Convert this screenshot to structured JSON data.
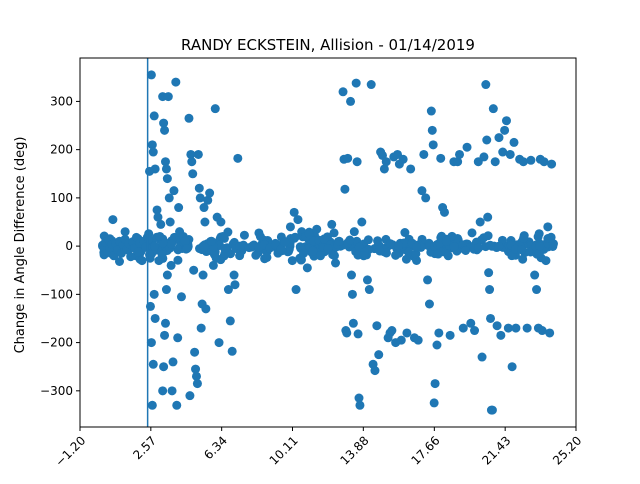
{
  "chart_data": {
    "type": "scatter",
    "title": "RANDY ECKSTEIN, Allision - 01/14/2019",
    "xlabel": "",
    "ylabel": "Change in Angle Difference (deg)",
    "xlim": [
      -1.2,
      25.2
    ],
    "ylim": [
      -375,
      390
    ],
    "x_tick_labels": [
      "−1.20",
      "2.57",
      "6.34",
      "10.11",
      "13.88",
      "17.66",
      "21.43",
      "25.20"
    ],
    "x_tick_values": [
      -1.2,
      2.57,
      6.34,
      10.11,
      13.88,
      17.66,
      21.43,
      25.2
    ],
    "y_tick_labels": [
      "−300",
      "−200",
      "−100",
      "0",
      "100",
      "200",
      "300"
    ],
    "y_tick_values": [
      -300,
      -200,
      -100,
      0,
      100,
      200,
      300
    ],
    "vertical_line_x": 2.4,
    "grid": false,
    "colors": {
      "points": "#1f77b4",
      "vline": "#1f77b4",
      "axes": "#000000"
    },
    "series": [
      {
        "values_note": "",
        "points": [
          [
            0.0,
            2
          ],
          [
            0.1,
            -5
          ],
          [
            0.15,
            8
          ],
          [
            0.25,
            -10
          ],
          [
            0.35,
            12
          ],
          [
            0.4,
            -3
          ],
          [
            0.5,
            4
          ],
          [
            0.55,
            55
          ],
          [
            0.6,
            -20
          ],
          [
            0.7,
            6
          ],
          [
            0.8,
            -8
          ],
          [
            0.9,
            10
          ],
          [
            1.0,
            -15
          ],
          [
            1.1,
            3
          ],
          [
            1.2,
            14
          ],
          [
            1.3,
            -6
          ],
          [
            1.4,
            5
          ],
          [
            1.5,
            -22
          ],
          [
            1.6,
            9
          ],
          [
            1.7,
            -4
          ],
          [
            1.8,
            18
          ],
          [
            1.9,
            -12
          ],
          [
            2.0,
            6
          ],
          [
            2.1,
            -30
          ],
          [
            2.2,
            10
          ],
          [
            2.3,
            -2
          ],
          [
            2.45,
            15
          ],
          [
            2.5,
            -18
          ],
          [
            2.6,
            355
          ],
          [
            2.65,
            210
          ],
          [
            2.7,
            195
          ],
          [
            2.75,
            270
          ],
          [
            2.8,
            160
          ],
          [
            2.5,
            155
          ],
          [
            2.55,
            -125
          ],
          [
            2.6,
            -200
          ],
          [
            2.65,
            -330
          ],
          [
            2.7,
            -245
          ],
          [
            2.75,
            -100
          ],
          [
            2.8,
            -150
          ],
          [
            2.9,
            75
          ],
          [
            2.95,
            60
          ],
          [
            3.0,
            -30
          ],
          [
            3.05,
            20
          ],
          [
            3.1,
            45
          ],
          [
            3.2,
            310
          ],
          [
            3.25,
            255
          ],
          [
            3.3,
            240
          ],
          [
            3.35,
            175
          ],
          [
            3.4,
            160
          ],
          [
            3.45,
            140
          ],
          [
            3.2,
            -300
          ],
          [
            3.25,
            -250
          ],
          [
            3.3,
            -185
          ],
          [
            3.35,
            -160
          ],
          [
            3.4,
            -90
          ],
          [
            3.45,
            -60
          ],
          [
            3.5,
            310
          ],
          [
            3.55,
            100
          ],
          [
            3.6,
            50
          ],
          [
            3.65,
            -40
          ],
          [
            3.7,
            -300
          ],
          [
            3.75,
            -240
          ],
          [
            3.8,
            115
          ],
          [
            3.9,
            340
          ],
          [
            3.95,
            -330
          ],
          [
            4.0,
            -190
          ],
          [
            4.05,
            80
          ],
          [
            4.1,
            30
          ],
          [
            4.2,
            -105
          ],
          [
            4.3,
            20
          ],
          [
            4.4,
            10
          ],
          [
            4.5,
            -5
          ],
          [
            4.6,
            265
          ],
          [
            4.65,
            -310
          ],
          [
            4.7,
            190
          ],
          [
            4.75,
            175
          ],
          [
            4.8,
            150
          ],
          [
            4.85,
            -50
          ],
          [
            4.9,
            -220
          ],
          [
            4.95,
            -255
          ],
          [
            5.0,
            -270
          ],
          [
            5.05,
            -285
          ],
          [
            5.1,
            190
          ],
          [
            5.15,
            120
          ],
          [
            5.2,
            100
          ],
          [
            5.25,
            -170
          ],
          [
            5.3,
            -120
          ],
          [
            5.35,
            -60
          ],
          [
            5.4,
            80
          ],
          [
            5.45,
            50
          ],
          [
            5.5,
            -130
          ],
          [
            5.6,
            95
          ],
          [
            5.7,
            110
          ],
          [
            5.8,
            10
          ],
          [
            5.9,
            -40
          ],
          [
            6.0,
            285
          ],
          [
            6.05,
            -25
          ],
          [
            6.1,
            60
          ],
          [
            6.2,
            -200
          ],
          [
            6.3,
            50
          ],
          [
            6.4,
            20
          ],
          [
            6.5,
            -5
          ],
          [
            6.7,
            -90
          ],
          [
            6.8,
            -155
          ],
          [
            6.9,
            -218
          ],
          [
            7.0,
            -60
          ],
          [
            7.05,
            -80
          ],
          [
            7.1,
            -5
          ],
          [
            7.2,
            182
          ],
          [
            7.3,
            0
          ],
          [
            7.5,
            2
          ],
          [
            7.8,
            -3
          ],
          [
            8.0,
            1
          ],
          [
            8.3,
            -2
          ],
          [
            8.6,
            3
          ],
          [
            8.9,
            -4
          ],
          [
            9.2,
            2
          ],
          [
            9.5,
            -6
          ],
          [
            9.7,
            8
          ],
          [
            10.0,
            40
          ],
          [
            10.1,
            -30
          ],
          [
            10.2,
            70
          ],
          [
            10.3,
            -90
          ],
          [
            10.4,
            55
          ],
          [
            10.5,
            -25
          ],
          [
            10.6,
            30
          ],
          [
            10.7,
            -15
          ],
          [
            10.8,
            20
          ],
          [
            10.9,
            -45
          ],
          [
            11.0,
            25
          ],
          [
            11.2,
            -10
          ],
          [
            11.4,
            35
          ],
          [
            11.6,
            -20
          ],
          [
            11.8,
            15
          ],
          [
            12.0,
            -5
          ],
          [
            12.2,
            45
          ],
          [
            12.4,
            -35
          ],
          [
            12.6,
            10
          ],
          [
            12.8,
            320
          ],
          [
            12.85,
            180
          ],
          [
            12.9,
            118
          ],
          [
            12.95,
            -175
          ],
          [
            13.0,
            -180
          ],
          [
            13.05,
            182
          ],
          [
            13.2,
            300
          ],
          [
            13.25,
            -60
          ],
          [
            13.3,
            -100
          ],
          [
            13.35,
            -160
          ],
          [
            13.4,
            30
          ],
          [
            13.5,
            338
          ],
          [
            13.55,
            175
          ],
          [
            13.6,
            -182
          ],
          [
            13.65,
            -315
          ],
          [
            13.7,
            -330
          ],
          [
            13.8,
            50
          ],
          [
            13.9,
            -20
          ],
          [
            14.1,
            -70
          ],
          [
            14.2,
            -90
          ],
          [
            14.3,
            335
          ],
          [
            14.4,
            -245
          ],
          [
            14.5,
            -258
          ],
          [
            14.6,
            -165
          ],
          [
            14.7,
            -225
          ],
          [
            14.8,
            195
          ],
          [
            14.9,
            188
          ],
          [
            15.0,
            160
          ],
          [
            15.1,
            175
          ],
          [
            15.2,
            -190
          ],
          [
            15.3,
            -180
          ],
          [
            15.4,
            -175
          ],
          [
            15.5,
            185
          ],
          [
            15.6,
            -200
          ],
          [
            15.7,
            190
          ],
          [
            15.8,
            170
          ],
          [
            15.9,
            -195
          ],
          [
            16.0,
            180
          ],
          [
            16.2,
            -180
          ],
          [
            16.4,
            160
          ],
          [
            16.6,
            -190
          ],
          [
            16.8,
            -195
          ],
          [
            17.0,
            115
          ],
          [
            17.1,
            190
          ],
          [
            17.2,
            100
          ],
          [
            17.3,
            -70
          ],
          [
            17.4,
            -120
          ],
          [
            17.5,
            280
          ],
          [
            17.55,
            240
          ],
          [
            17.6,
            210
          ],
          [
            17.65,
            -325
          ],
          [
            17.7,
            -285
          ],
          [
            17.8,
            -205
          ],
          [
            17.9,
            -180
          ],
          [
            18.0,
            182
          ],
          [
            18.1,
            80
          ],
          [
            18.2,
            70
          ],
          [
            18.3,
            10
          ],
          [
            18.4,
            -20
          ],
          [
            18.5,
            -185
          ],
          [
            18.7,
            175
          ],
          [
            18.9,
            175
          ],
          [
            19.0,
            190
          ],
          [
            19.2,
            -170
          ],
          [
            19.4,
            205
          ],
          [
            19.6,
            -160
          ],
          [
            19.8,
            -175
          ],
          [
            20.0,
            175
          ],
          [
            20.1,
            50
          ],
          [
            20.2,
            -230
          ],
          [
            20.3,
            185
          ],
          [
            20.4,
            335
          ],
          [
            20.45,
            220
          ],
          [
            20.5,
            60
          ],
          [
            20.55,
            -55
          ],
          [
            20.6,
            -90
          ],
          [
            20.65,
            -150
          ],
          [
            20.7,
            -340
          ],
          [
            20.75,
            -340
          ],
          [
            20.8,
            285
          ],
          [
            20.9,
            175
          ],
          [
            21.0,
            -165
          ],
          [
            21.1,
            225
          ],
          [
            21.2,
            -185
          ],
          [
            21.3,
            195
          ],
          [
            21.4,
            240
          ],
          [
            21.5,
            260
          ],
          [
            21.6,
            -170
          ],
          [
            21.7,
            190
          ],
          [
            21.8,
            -250
          ],
          [
            21.9,
            215
          ],
          [
            22.0,
            -170
          ],
          [
            22.2,
            180
          ],
          [
            22.4,
            175
          ],
          [
            22.6,
            -170
          ],
          [
            22.8,
            178
          ],
          [
            23.0,
            -60
          ],
          [
            23.1,
            -90
          ],
          [
            23.2,
            -170
          ],
          [
            23.3,
            180
          ],
          [
            23.4,
            -175
          ],
          [
            23.5,
            175
          ],
          [
            23.6,
            -30
          ],
          [
            23.7,
            40
          ],
          [
            23.8,
            -180
          ],
          [
            23.9,
            170
          ],
          [
            24.0,
            5
          ]
        ]
      }
    ],
    "dense_band": {
      "x_range": [
        0,
        24.0
      ],
      "y_spread": 35,
      "count": 420,
      "seed": 7
    }
  }
}
